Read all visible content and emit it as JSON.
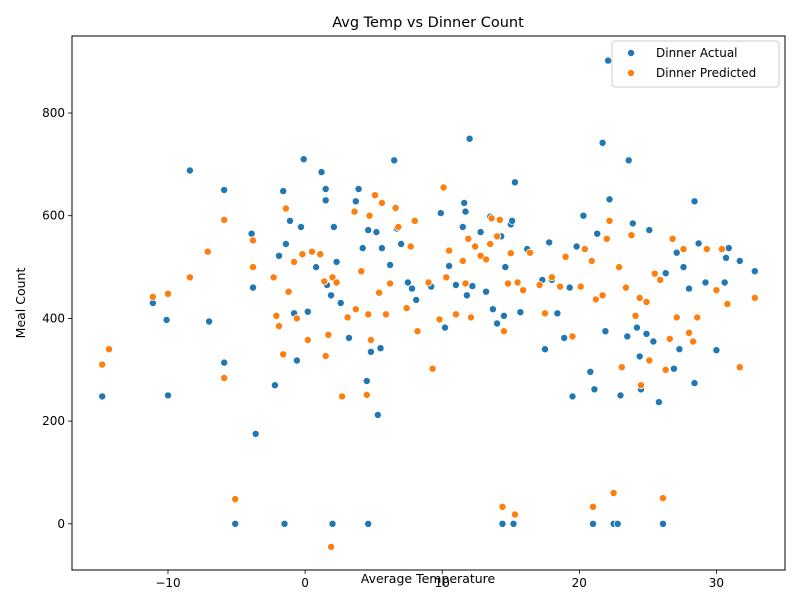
{
  "chart_data": {
    "type": "scatter",
    "title": "Avg Temp vs Dinner Count",
    "xlabel": "Average Temperature",
    "ylabel": "Meal Count",
    "xlim": [
      -17,
      35
    ],
    "ylim": [
      -90,
      950
    ],
    "xticks": [
      -10,
      0,
      10,
      20,
      30
    ],
    "yticks": [
      0,
      200,
      400,
      600,
      800
    ],
    "grid": false,
    "legend_position": "top-right",
    "series": [
      {
        "name": "Dinner Actual",
        "color": "#1f77b4",
        "points": [
          [
            -14.8,
            248
          ],
          [
            -11.1,
            430
          ],
          [
            -10.1,
            397
          ],
          [
            -10.0,
            250
          ],
          [
            -8.4,
            688
          ],
          [
            -7.0,
            394
          ],
          [
            -5.9,
            314
          ],
          [
            -5.9,
            650
          ],
          [
            -5.1,
            0
          ],
          [
            -3.9,
            565
          ],
          [
            -3.8,
            460
          ],
          [
            -3.6,
            175
          ],
          [
            -2.2,
            270
          ],
          [
            -1.9,
            522
          ],
          [
            -1.6,
            648
          ],
          [
            -1.5,
            0
          ],
          [
            -1.4,
            545
          ],
          [
            -1.1,
            590
          ],
          [
            -0.8,
            410
          ],
          [
            -0.6,
            318
          ],
          [
            -0.3,
            578
          ],
          [
            -0.1,
            710
          ],
          [
            0.2,
            413
          ],
          [
            0.8,
            500
          ],
          [
            1.2,
            685
          ],
          [
            1.5,
            652
          ],
          [
            1.5,
            630
          ],
          [
            1.6,
            465
          ],
          [
            1.9,
            445
          ],
          [
            2.0,
            0
          ],
          [
            2.1,
            578
          ],
          [
            2.3,
            510
          ],
          [
            2.6,
            430
          ],
          [
            3.2,
            362
          ],
          [
            3.7,
            628
          ],
          [
            3.9,
            652
          ],
          [
            4.2,
            537
          ],
          [
            4.5,
            278
          ],
          [
            4.6,
            0
          ],
          [
            4.6,
            572
          ],
          [
            4.8,
            335
          ],
          [
            5.2,
            568
          ],
          [
            5.3,
            212
          ],
          [
            5.5,
            342
          ],
          [
            5.6,
            537
          ],
          [
            6.2,
            504
          ],
          [
            6.5,
            708
          ],
          [
            6.7,
            575
          ],
          [
            7.0,
            545
          ],
          [
            7.5,
            470
          ],
          [
            7.8,
            458
          ],
          [
            8.1,
            436
          ],
          [
            9.2,
            462
          ],
          [
            9.9,
            605
          ],
          [
            10.2,
            382
          ],
          [
            10.5,
            502
          ],
          [
            11.0,
            465
          ],
          [
            11.5,
            578
          ],
          [
            11.6,
            625
          ],
          [
            11.7,
            608
          ],
          [
            11.8,
            445
          ],
          [
            12.0,
            750
          ],
          [
            12.2,
            463
          ],
          [
            12.8,
            568
          ],
          [
            13.2,
            452
          ],
          [
            13.5,
            598
          ],
          [
            13.7,
            418
          ],
          [
            14.0,
            390
          ],
          [
            14.3,
            560
          ],
          [
            14.4,
            0
          ],
          [
            14.5,
            405
          ],
          [
            14.6,
            500
          ],
          [
            15.0,
            583
          ],
          [
            15.1,
            590
          ],
          [
            15.2,
            0
          ],
          [
            15.3,
            665
          ],
          [
            15.7,
            412
          ],
          [
            16.2,
            535
          ],
          [
            17.3,
            475
          ],
          [
            17.5,
            340
          ],
          [
            17.8,
            548
          ],
          [
            18.0,
            475
          ],
          [
            18.4,
            410
          ],
          [
            18.9,
            362
          ],
          [
            19.3,
            460
          ],
          [
            19.5,
            248
          ],
          [
            19.8,
            540
          ],
          [
            20.3,
            600
          ],
          [
            20.8,
            296
          ],
          [
            21.1,
            262
          ],
          [
            21.0,
            0
          ],
          [
            21.3,
            565
          ],
          [
            21.7,
            742
          ],
          [
            21.9,
            375
          ],
          [
            22.1,
            902
          ],
          [
            22.2,
            632
          ],
          [
            22.5,
            0
          ],
          [
            22.8,
            0
          ],
          [
            23.0,
            250
          ],
          [
            23.5,
            365
          ],
          [
            23.6,
            708
          ],
          [
            23.9,
            585
          ],
          [
            24.2,
            382
          ],
          [
            24.4,
            326
          ],
          [
            24.5,
            262
          ],
          [
            24.9,
            370
          ],
          [
            25.1,
            572
          ],
          [
            25.4,
            355
          ],
          [
            25.8,
            237
          ],
          [
            26.1,
            0
          ],
          [
            26.3,
            488
          ],
          [
            26.9,
            302
          ],
          [
            27.1,
            528
          ],
          [
            27.3,
            340
          ],
          [
            27.6,
            500
          ],
          [
            28.0,
            458
          ],
          [
            28.4,
            628
          ],
          [
            28.4,
            274
          ],
          [
            28.7,
            546
          ],
          [
            29.2,
            470
          ],
          [
            30.0,
            338
          ],
          [
            30.6,
            470
          ],
          [
            30.7,
            518
          ],
          [
            30.9,
            537
          ],
          [
            31.7,
            512
          ],
          [
            32.8,
            492
          ]
        ]
      },
      {
        "name": "Dinner Predicted",
        "color": "#ff7f0e",
        "points": [
          [
            -14.8,
            310
          ],
          [
            -14.3,
            340
          ],
          [
            -11.1,
            442
          ],
          [
            -10.0,
            448
          ],
          [
            -8.4,
            480
          ],
          [
            -7.1,
            530
          ],
          [
            -5.9,
            592
          ],
          [
            -5.9,
            284
          ],
          [
            -5.1,
            48
          ],
          [
            -3.8,
            552
          ],
          [
            -3.8,
            500
          ],
          [
            -2.3,
            480
          ],
          [
            -2.1,
            405
          ],
          [
            -1.9,
            385
          ],
          [
            -1.6,
            330
          ],
          [
            -1.4,
            614
          ],
          [
            -1.2,
            452
          ],
          [
            -0.8,
            510
          ],
          [
            -0.6,
            400
          ],
          [
            -0.2,
            525
          ],
          [
            0.2,
            358
          ],
          [
            0.5,
            530
          ],
          [
            1.1,
            525
          ],
          [
            1.4,
            472
          ],
          [
            1.5,
            327
          ],
          [
            1.7,
            368
          ],
          [
            1.9,
            -45
          ],
          [
            2.0,
            480
          ],
          [
            2.3,
            470
          ],
          [
            2.7,
            248
          ],
          [
            3.1,
            402
          ],
          [
            3.6,
            608
          ],
          [
            3.7,
            418
          ],
          [
            4.1,
            492
          ],
          [
            4.5,
            251
          ],
          [
            4.6,
            408
          ],
          [
            4.7,
            600
          ],
          [
            4.8,
            358
          ],
          [
            5.1,
            640
          ],
          [
            5.4,
            450
          ],
          [
            5.6,
            625
          ],
          [
            5.9,
            408
          ],
          [
            6.2,
            468
          ],
          [
            6.6,
            615
          ],
          [
            6.8,
            578
          ],
          [
            7.4,
            420
          ],
          [
            7.7,
            540
          ],
          [
            8.0,
            590
          ],
          [
            8.2,
            375
          ],
          [
            9.0,
            470
          ],
          [
            9.3,
            302
          ],
          [
            9.8,
            398
          ],
          [
            10.1,
            655
          ],
          [
            10.3,
            480
          ],
          [
            10.5,
            532
          ],
          [
            11.0,
            408
          ],
          [
            11.5,
            512
          ],
          [
            11.7,
            468
          ],
          [
            11.9,
            555
          ],
          [
            12.1,
            402
          ],
          [
            12.4,
            540
          ],
          [
            12.8,
            522
          ],
          [
            13.2,
            515
          ],
          [
            13.5,
            545
          ],
          [
            13.6,
            595
          ],
          [
            14.0,
            560
          ],
          [
            14.2,
            592
          ],
          [
            14.4,
            33
          ],
          [
            14.5,
            375
          ],
          [
            14.8,
            468
          ],
          [
            15.0,
            527
          ],
          [
            15.3,
            18
          ],
          [
            15.5,
            470
          ],
          [
            15.9,
            455
          ],
          [
            16.4,
            528
          ],
          [
            17.1,
            465
          ],
          [
            17.5,
            410
          ],
          [
            18.0,
            480
          ],
          [
            18.6,
            462
          ],
          [
            19.0,
            520
          ],
          [
            19.5,
            365
          ],
          [
            20.1,
            462
          ],
          [
            20.4,
            535
          ],
          [
            20.9,
            512
          ],
          [
            21.0,
            33
          ],
          [
            21.2,
            437
          ],
          [
            21.7,
            445
          ],
          [
            22.0,
            555
          ],
          [
            22.2,
            590
          ],
          [
            22.5,
            60
          ],
          [
            22.9,
            500
          ],
          [
            23.1,
            305
          ],
          [
            23.4,
            460
          ],
          [
            23.8,
            562
          ],
          [
            24.1,
            405
          ],
          [
            24.4,
            440
          ],
          [
            24.5,
            270
          ],
          [
            24.9,
            432
          ],
          [
            25.1,
            318
          ],
          [
            25.5,
            487
          ],
          [
            25.9,
            475
          ],
          [
            26.1,
            50
          ],
          [
            26.3,
            300
          ],
          [
            26.6,
            360
          ],
          [
            26.8,
            555
          ],
          [
            27.1,
            402
          ],
          [
            27.6,
            535
          ],
          [
            28.0,
            372
          ],
          [
            28.3,
            355
          ],
          [
            28.6,
            402
          ],
          [
            29.3,
            535
          ],
          [
            30.0,
            455
          ],
          [
            30.4,
            535
          ],
          [
            30.8,
            428
          ],
          [
            31.7,
            305
          ],
          [
            32.8,
            440
          ]
        ]
      }
    ]
  }
}
